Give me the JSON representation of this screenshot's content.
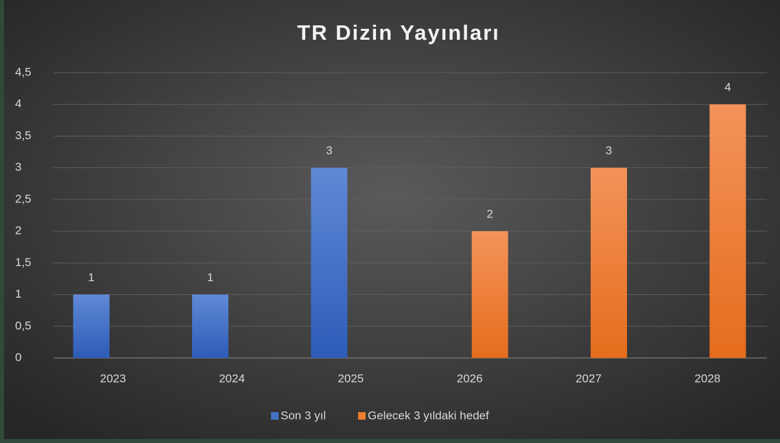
{
  "chart_data": {
    "type": "bar",
    "title": "TR Dizin Yayınları",
    "categories": [
      "2023",
      "2024",
      "2025",
      "2026",
      "2027",
      "2028"
    ],
    "series": [
      {
        "name": "Son 3 yıl",
        "color": "#4472c4",
        "values": [
          1,
          1,
          3,
          null,
          null,
          null
        ]
      },
      {
        "name": "Gelecek 3 yıldaki hedef",
        "color": "#ed7d31",
        "values": [
          null,
          null,
          null,
          2,
          3,
          4
        ]
      }
    ],
    "ylim": [
      0,
      4.5
    ],
    "yticks": [
      0,
      {
        "value": 0.5,
        "label": "0,5"
      },
      1,
      {
        "value": 1.5,
        "label": "1,5"
      },
      2,
      {
        "value": 2.5,
        "label": "2,5"
      },
      3,
      {
        "value": 3.5,
        "label": "3,5"
      },
      4,
      {
        "value": 4.5,
        "label": "4,5"
      }
    ],
    "grid": true,
    "legend": "bottom"
  }
}
